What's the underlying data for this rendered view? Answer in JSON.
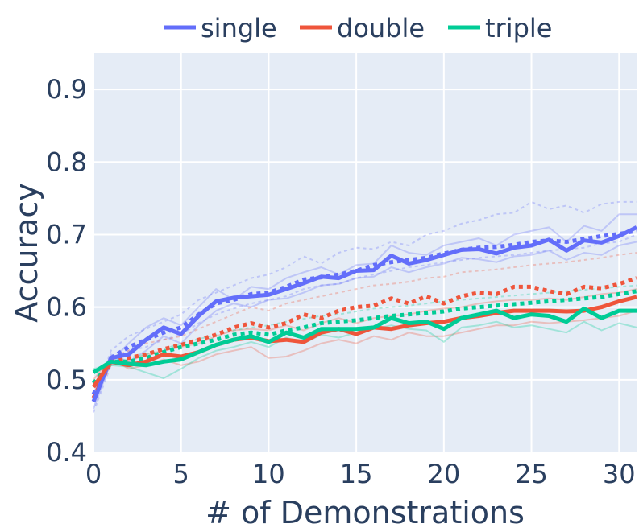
{
  "chart_data": {
    "type": "line",
    "xlabel": "# of Demonstrations",
    "ylabel": "Accuracy",
    "xlim": [
      0,
      31
    ],
    "ylim": [
      0.4,
      0.95
    ],
    "xticks": [
      0,
      5,
      10,
      15,
      20,
      25,
      30
    ],
    "yticks": [
      0.4,
      0.5,
      0.6,
      0.7,
      0.8,
      0.9
    ],
    "grid": true,
    "legend": "top, horizontal",
    "x": [
      0,
      1,
      2,
      3,
      4,
      5,
      6,
      7,
      8,
      9,
      10,
      11,
      12,
      13,
      14,
      15,
      16,
      17,
      18,
      19,
      20,
      21,
      22,
      23,
      24,
      25,
      26,
      27,
      28,
      29,
      30,
      31
    ],
    "series": [
      {
        "name": "single",
        "color": "#636efa",
        "solid": [
          0.47,
          0.53,
          0.535,
          0.555,
          0.572,
          0.563,
          0.588,
          0.608,
          0.613,
          0.615,
          0.617,
          0.625,
          0.633,
          0.642,
          0.64,
          0.65,
          0.651,
          0.671,
          0.66,
          0.665,
          0.672,
          0.679,
          0.68,
          0.674,
          0.682,
          0.685,
          0.693,
          0.678,
          0.692,
          0.689,
          0.698,
          0.71
        ],
        "dotted": [
          0.48,
          0.53,
          0.545,
          0.555,
          0.565,
          0.572,
          0.59,
          0.605,
          0.61,
          0.618,
          0.62,
          0.628,
          0.638,
          0.641,
          0.645,
          0.65,
          0.658,
          0.662,
          0.665,
          0.668,
          0.674,
          0.679,
          0.682,
          0.683,
          0.686,
          0.69,
          0.692,
          0.69,
          0.694,
          0.698,
          0.701,
          0.705
        ]
      },
      {
        "name": "double",
        "color": "#ef553b",
        "solid": [
          0.49,
          0.525,
          0.52,
          0.525,
          0.535,
          0.532,
          0.538,
          0.548,
          0.555,
          0.558,
          0.553,
          0.555,
          0.552,
          0.565,
          0.57,
          0.563,
          0.572,
          0.57,
          0.575,
          0.578,
          0.58,
          0.585,
          0.588,
          0.592,
          0.595,
          0.595,
          0.595,
          0.594,
          0.595,
          0.6,
          0.608,
          0.614
        ],
        "dotted": [
          0.475,
          0.525,
          0.53,
          0.535,
          0.542,
          0.548,
          0.555,
          0.562,
          0.572,
          0.578,
          0.572,
          0.578,
          0.59,
          0.585,
          0.595,
          0.6,
          0.602,
          0.612,
          0.605,
          0.615,
          0.605,
          0.615,
          0.62,
          0.618,
          0.628,
          0.628,
          0.622,
          0.618,
          0.628,
          0.626,
          0.632,
          0.64
        ]
      },
      {
        "name": "triple",
        "color": "#00cc96",
        "solid": [
          0.51,
          0.525,
          0.522,
          0.52,
          0.525,
          0.528,
          0.538,
          0.548,
          0.555,
          0.56,
          0.552,
          0.565,
          0.558,
          0.57,
          0.57,
          0.57,
          0.572,
          0.585,
          0.578,
          0.58,
          0.57,
          0.585,
          0.59,
          0.595,
          0.585,
          0.59,
          0.588,
          0.58,
          0.598,
          0.585,
          0.595,
          0.595
        ],
        "dotted": [
          0.495,
          0.525,
          0.525,
          0.53,
          0.538,
          0.545,
          0.55,
          0.555,
          0.562,
          0.565,
          0.562,
          0.568,
          0.572,
          0.578,
          0.58,
          0.582,
          0.585,
          0.588,
          0.59,
          0.592,
          0.594,
          0.598,
          0.6,
          0.602,
          0.604,
          0.606,
          0.608,
          0.61,
          0.612,
          0.614,
          0.618,
          0.622
        ]
      }
    ],
    "faint_runs": [
      {
        "color": "#636efa",
        "dash": false,
        "values": [
          0.46,
          0.525,
          0.55,
          0.572,
          0.585,
          0.575,
          0.6,
          0.625,
          0.61,
          0.628,
          0.625,
          0.64,
          0.648,
          0.655,
          0.645,
          0.658,
          0.66,
          0.685,
          0.675,
          0.672,
          0.685,
          0.69,
          0.695,
          0.685,
          0.7,
          0.705,
          0.71,
          0.69,
          0.712,
          0.705,
          0.728,
          0.728
        ]
      },
      {
        "color": "#636efa",
        "dash": false,
        "values": [
          0.48,
          0.535,
          0.525,
          0.54,
          0.56,
          0.55,
          0.575,
          0.595,
          0.605,
          0.6,
          0.61,
          0.612,
          0.62,
          0.63,
          0.632,
          0.64,
          0.642,
          0.655,
          0.648,
          0.655,
          0.66,
          0.668,
          0.666,
          0.662,
          0.67,
          0.672,
          0.678,
          0.665,
          0.675,
          0.672,
          0.685,
          0.69
        ]
      },
      {
        "color": "#636efa",
        "dash": true,
        "values": [
          0.47,
          0.54,
          0.56,
          0.57,
          0.58,
          0.59,
          0.61,
          0.62,
          0.63,
          0.64,
          0.645,
          0.655,
          0.67,
          0.66,
          0.675,
          0.682,
          0.68,
          0.69,
          0.685,
          0.7,
          0.705,
          0.715,
          0.72,
          0.728,
          0.73,
          0.745,
          0.735,
          0.74,
          0.73,
          0.742,
          0.745,
          0.745
        ]
      },
      {
        "color": "#636efa",
        "dash": true,
        "values": [
          0.455,
          0.52,
          0.54,
          0.545,
          0.555,
          0.562,
          0.578,
          0.59,
          0.598,
          0.605,
          0.61,
          0.615,
          0.625,
          0.63,
          0.632,
          0.64,
          0.645,
          0.65,
          0.655,
          0.658,
          0.662,
          0.665,
          0.668,
          0.67,
          0.672,
          0.675,
          0.678,
          0.68,
          0.682,
          0.688,
          0.69,
          0.7
        ]
      },
      {
        "color": "#ef553b",
        "dash": false,
        "values": [
          0.5,
          0.53,
          0.515,
          0.52,
          0.528,
          0.52,
          0.525,
          0.535,
          0.54,
          0.545,
          0.53,
          0.532,
          0.54,
          0.55,
          0.555,
          0.55,
          0.56,
          0.555,
          0.565,
          0.56,
          0.56,
          0.565,
          0.57,
          0.575,
          0.575,
          0.58,
          0.578,
          0.58,
          0.582,
          0.585,
          0.588,
          0.595
        ]
      },
      {
        "color": "#ef553b",
        "dash": false,
        "values": [
          0.48,
          0.52,
          0.525,
          0.535,
          0.54,
          0.545,
          0.55,
          0.56,
          0.568,
          0.57,
          0.568,
          0.575,
          0.568,
          0.578,
          0.585,
          0.578,
          0.585,
          0.588,
          0.59,
          0.595,
          0.598,
          0.6,
          0.605,
          0.608,
          0.61,
          0.61,
          0.612,
          0.61,
          0.614,
          0.618,
          0.62,
          0.625
        ]
      },
      {
        "color": "#ef553b",
        "dash": true,
        "values": [
          0.47,
          0.53,
          0.54,
          0.55,
          0.555,
          0.56,
          0.57,
          0.58,
          0.59,
          0.6,
          0.595,
          0.605,
          0.61,
          0.615,
          0.62,
          0.625,
          0.63,
          0.632,
          0.635,
          0.64,
          0.642,
          0.648,
          0.65,
          0.652,
          0.655,
          0.658,
          0.66,
          0.662,
          0.665,
          0.668,
          0.672,
          0.675
        ]
      },
      {
        "color": "#00cc96",
        "dash": false,
        "values": [
          0.515,
          0.52,
          0.518,
          0.51,
          0.502,
          0.515,
          0.53,
          0.54,
          0.545,
          0.552,
          0.545,
          0.558,
          0.55,
          0.562,
          0.558,
          0.565,
          0.57,
          0.575,
          0.57,
          0.568,
          0.552,
          0.572,
          0.575,
          0.58,
          0.572,
          0.575,
          0.57,
          0.565,
          0.58,
          0.568,
          0.578,
          0.572
        ]
      },
      {
        "color": "#00cc96",
        "dash": true,
        "values": [
          0.49,
          0.52,
          0.53,
          0.535,
          0.542,
          0.55,
          0.556,
          0.562,
          0.568,
          0.572,
          0.575,
          0.58,
          0.584,
          0.588,
          0.59,
          0.594,
          0.598,
          0.6,
          0.602,
          0.605,
          0.608,
          0.61,
          0.612,
          0.614,
          0.616,
          0.618,
          0.62,
          0.622,
          0.624,
          0.626,
          0.628,
          0.63
        ]
      }
    ]
  }
}
